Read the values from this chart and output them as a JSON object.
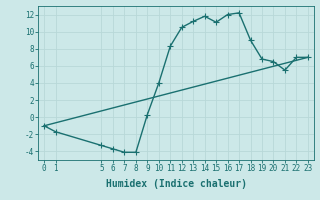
{
  "title": "",
  "xlabel": "Humidex (Indice chaleur)",
  "ylabel": "",
  "background_color": "#cce8e8",
  "line_color": "#1a7070",
  "grid_color": "#b8d8d8",
  "x_ticks": [
    0,
    1,
    5,
    6,
    7,
    8,
    9,
    10,
    11,
    12,
    13,
    14,
    15,
    16,
    17,
    18,
    19,
    20,
    21,
    22,
    23
  ],
  "ylim": [
    -5,
    13
  ],
  "yticks": [
    -4,
    -2,
    0,
    2,
    4,
    6,
    8,
    10,
    12
  ],
  "curve1_x": [
    0,
    1,
    5,
    6,
    7,
    8,
    9,
    10,
    11,
    12,
    13,
    14,
    15,
    16,
    17,
    18,
    19,
    20,
    21,
    22,
    23
  ],
  "curve1_y": [
    -1.0,
    -1.7,
    -3.3,
    -3.7,
    -4.1,
    -4.1,
    0.3,
    4.0,
    8.3,
    10.5,
    11.2,
    11.8,
    11.1,
    12.0,
    12.2,
    9.0,
    6.8,
    6.5,
    5.5,
    7.0,
    7.0
  ],
  "curve2_x": [
    0,
    23
  ],
  "curve2_y": [
    -1.0,
    7.0
  ],
  "marker": "+",
  "marker_size": 4,
  "line_width": 1.0,
  "font_size": 5.5
}
